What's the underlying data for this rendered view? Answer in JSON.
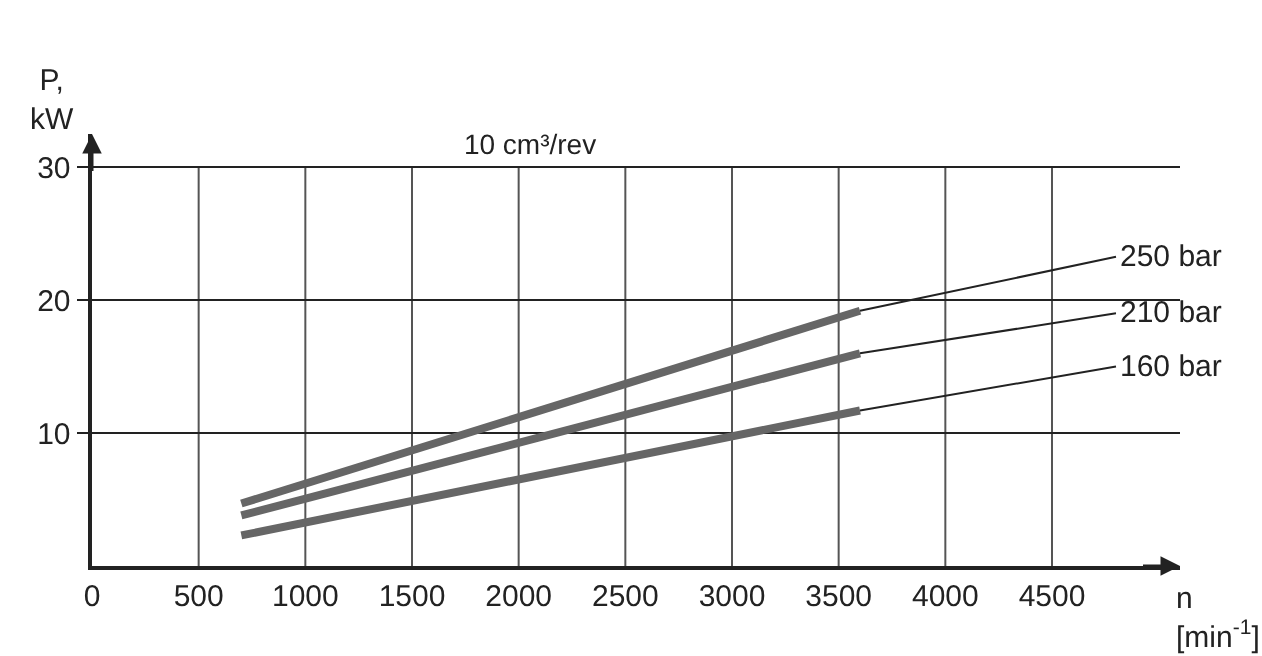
{
  "chart_data": {
    "type": "line",
    "title": "10 cm³/rev",
    "xlabel": "n\n[min$^{-1}$]",
    "ylabel": "P,\nkW",
    "x": [
      700,
      3600
    ],
    "series": [
      {
        "name": "250 bar",
        "color": "#666666",
        "values": [
          4.7,
          19.2
        ]
      },
      {
        "name": "210 bar",
        "color": "#666666",
        "values": [
          3.8,
          16.0
        ]
      },
      {
        "name": "160 bar",
        "color": "#666666",
        "values": [
          2.3,
          11.7
        ]
      }
    ],
    "xlim": [
      0,
      5100
    ],
    "ylim": [
      0,
      32.5
    ],
    "xticks": [
      0,
      500,
      1000,
      1500,
      2000,
      2500,
      3000,
      3500,
      4000,
      4500
    ],
    "yticks": [
      10,
      20,
      30
    ],
    "grid": true,
    "legend": false,
    "marker": "none",
    "line_style": "solid"
  }
}
